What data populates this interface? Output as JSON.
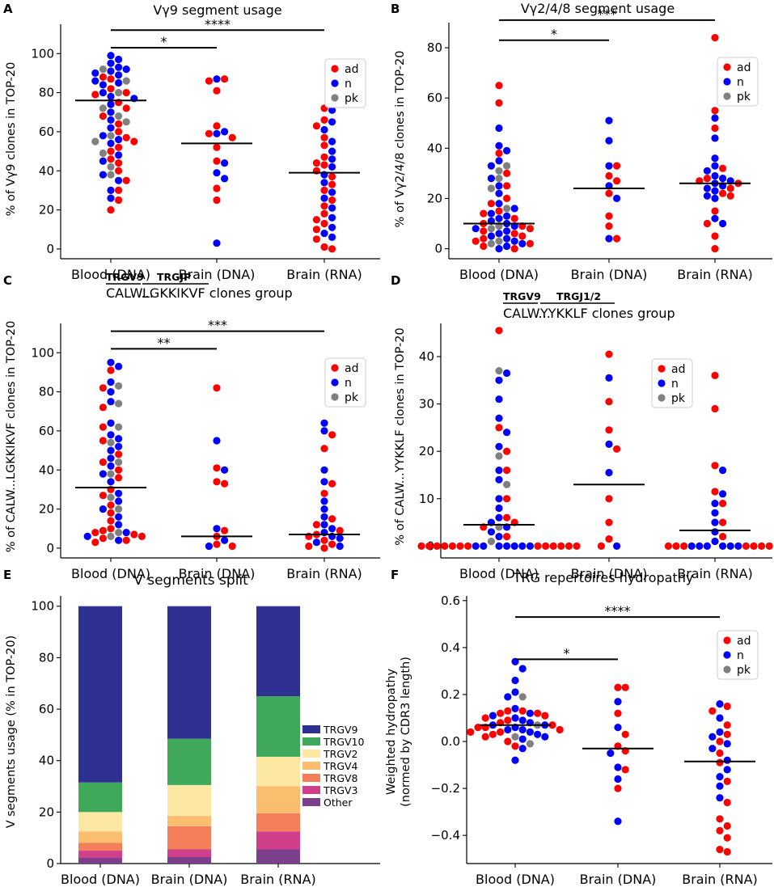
{
  "figure": {
    "colors": {
      "ad": "#ff0000",
      "n": "#0000ff",
      "pk": "#808080",
      "axis": "#000000"
    },
    "x_categories": [
      "Blood (DNA)",
      "Brain (DNA)",
      "Brain (RNA)"
    ]
  },
  "chart_data": [
    {
      "id": "A",
      "letter": "A",
      "type": "scatter",
      "title": "Vγ9 segment usage",
      "ylabel": "% of Vγ9 clones in TOP-20",
      "categories": [
        "Blood (DNA)",
        "Brain (DNA)",
        "Brain (RNA)"
      ],
      "ylim": [
        -5,
        115
      ],
      "yticks": [
        "0",
        "20",
        "40",
        "60",
        "80",
        "100"
      ],
      "tick_values": [
        0,
        20,
        40,
        60,
        80,
        100
      ],
      "legend": [
        "ad",
        "n",
        "pk"
      ],
      "legend_pos": "top-right",
      "medians": [
        76,
        54,
        39
      ],
      "significance": [
        {
          "from": 0,
          "to": 1,
          "y": 103,
          "label": "*"
        },
        {
          "from": 0,
          "to": 2,
          "y": 112,
          "label": "****"
        }
      ],
      "groups": [
        {
          "ad": [
            80,
            79,
            88,
            87,
            75,
            72,
            68,
            60,
            57,
            55,
            50,
            46,
            44,
            40,
            35,
            30,
            25,
            20,
            82,
            64,
            52
          ],
          "n": [
            99,
            97,
            95,
            93,
            92,
            90,
            89,
            86,
            85,
            84,
            80,
            78,
            77,
            74,
            70,
            66,
            62,
            58,
            56,
            54,
            48,
            45,
            38,
            35,
            30,
            26,
            91
          ],
          "pk": [
            92,
            86,
            80,
            72,
            68,
            65,
            58,
            55,
            49,
            42,
            38
          ]
        },
        {
          "ad": [
            87,
            86,
            81,
            63,
            59,
            57,
            52,
            45,
            31,
            25
          ],
          "n": [
            87,
            60,
            59,
            44,
            39,
            36,
            3
          ],
          "pk": []
        },
        {
          "ad": [
            72,
            66,
            63,
            57,
            53,
            47,
            44,
            43,
            40,
            37,
            33,
            30,
            25,
            22,
            18,
            15,
            13,
            10,
            5,
            1,
            0
          ],
          "n": [
            71,
            65,
            61,
            55,
            50,
            46,
            42,
            38,
            34,
            29,
            26,
            21,
            16,
            11,
            8,
            6
          ],
          "pk": []
        }
      ]
    },
    {
      "id": "B",
      "letter": "B",
      "type": "scatter",
      "title": "Vγ2/4/8 segment usage",
      "ylabel": "% of Vγ2/4/8 clones in TOP-20",
      "categories": [
        "Blood (DNA)",
        "Brain (DNA)",
        "Brain (RNA)"
      ],
      "ylim": [
        -4,
        90
      ],
      "yticks": [
        "0",
        "20",
        "40",
        "60",
        "80"
      ],
      "tick_values": [
        0,
        20,
        40,
        60,
        80
      ],
      "legend": [
        "ad",
        "n",
        "pk"
      ],
      "legend_pos": "top-right",
      "medians": [
        10,
        24,
        26
      ],
      "significance": [
        {
          "from": 0,
          "to": 1,
          "y": 83,
          "label": "*"
        },
        {
          "from": 0,
          "to": 2,
          "y": 91,
          "label": "***"
        }
      ],
      "groups": [
        {
          "ad": [
            65,
            58,
            38,
            30,
            25,
            20,
            18,
            15,
            12,
            10,
            9,
            8,
            7,
            6,
            5,
            4,
            3,
            2,
            1,
            0,
            14
          ],
          "n": [
            48,
            41,
            39,
            35,
            28,
            25,
            22,
            18,
            16,
            14,
            12,
            11,
            10,
            9,
            8,
            7,
            6,
            5,
            4,
            3,
            2,
            1,
            0,
            33,
            13
          ],
          "pk": [
            33,
            31,
            28,
            24,
            16,
            9,
            8,
            3,
            2
          ]
        },
        {
          "ad": [
            33,
            29,
            27,
            22,
            13,
            9,
            4
          ],
          "n": [
            51,
            43,
            33,
            25,
            20,
            4
          ],
          "pk": []
        },
        {
          "ad": [
            84,
            55,
            48,
            32,
            28,
            27,
            26,
            24,
            22,
            21,
            15,
            10,
            5,
            0
          ],
          "n": [
            52,
            44,
            36,
            33,
            31,
            29,
            28,
            27,
            26,
            25,
            24,
            23,
            21,
            20,
            12,
            10
          ],
          "pk": []
        }
      ]
    },
    {
      "id": "C",
      "letter": "C",
      "type": "scatter",
      "title_genes": [
        "TRGV9",
        "TRGJP"
      ],
      "title_seq": [
        "CALW...",
        "LGKKIKVF clones group"
      ],
      "ylabel": "% of CALW...LGKKIKVF clones in TOP-20",
      "categories": [
        "Blood (DNA)",
        "Brain (DNA)",
        "Brain (RNA)"
      ],
      "ylim": [
        -5,
        115
      ],
      "yticks": [
        "0",
        "20",
        "40",
        "60",
        "80",
        "100"
      ],
      "tick_values": [
        0,
        20,
        40,
        60,
        80,
        100
      ],
      "legend": [
        "ad",
        "n",
        "pk"
      ],
      "legend_pos": "top-right",
      "medians": [
        31,
        6,
        7
      ],
      "significance": [
        {
          "from": 0,
          "to": 1,
          "y": 102,
          "label": "**"
        },
        {
          "from": 0,
          "to": 2,
          "y": 111,
          "label": "***"
        }
      ],
      "groups": [
        {
          "ad": [
            91,
            82,
            72,
            62,
            55,
            48,
            44,
            40,
            36,
            30,
            27,
            22,
            18,
            14,
            9,
            8,
            7,
            6,
            5,
            4,
            3,
            10
          ],
          "n": [
            95,
            93,
            85,
            80,
            75,
            64,
            58,
            56,
            52,
            50,
            46,
            42,
            38,
            34,
            28,
            24,
            20,
            16,
            12,
            8,
            6,
            4
          ],
          "pk": [
            83,
            74,
            62,
            54,
            44,
            38,
            26,
            20,
            8,
            6
          ]
        },
        {
          "ad": [
            82,
            41,
            34,
            33,
            9,
            6,
            2,
            1
          ],
          "n": [
            55,
            40,
            10,
            4,
            1
          ],
          "pk": []
        },
        {
          "ad": [
            58,
            51,
            33,
            28,
            15,
            12,
            9,
            7,
            6,
            4,
            2,
            1,
            0
          ],
          "n": [
            64,
            60,
            40,
            34,
            24,
            20,
            16,
            12,
            10,
            8,
            6,
            5,
            3,
            1
          ],
          "pk": []
        }
      ]
    },
    {
      "id": "D",
      "letter": "D",
      "type": "scatter",
      "title_genes": [
        "TRGV9",
        "TRGJ1/2"
      ],
      "title_seq": [
        "CALW...",
        "YYKKLF clones group"
      ],
      "ylabel": "% of CALW...YYKKLF clones in TOP-20",
      "categories": [
        "Blood (DNA)",
        "Brain (DNA)",
        "Brain (RNA)"
      ],
      "ylim": [
        -2.5,
        47
      ],
      "yticks": [
        "0",
        "10",
        "20",
        "30",
        "40"
      ],
      "tick_values": [
        0,
        10,
        20,
        30,
        40
      ],
      "legend": [
        "ad",
        "n",
        "pk"
      ],
      "legend_pos": "top-center",
      "medians": [
        4.5,
        13,
        3.3
      ],
      "significance": [],
      "groups": [
        {
          "ad": [
            45.5,
            25,
            20,
            16,
            10,
            6,
            5,
            4,
            2,
            0,
            0,
            0,
            0,
            0,
            0,
            0,
            0,
            0,
            0,
            0,
            0,
            0
          ],
          "n": [
            36.5,
            35,
            31,
            27,
            24,
            21,
            16,
            14,
            10,
            8,
            6,
            5,
            4,
            3,
            2,
            0,
            0,
            0,
            0,
            0,
            0,
            0
          ],
          "pk": [
            37,
            19,
            13,
            4,
            1
          ]
        },
        {
          "ad": [
            40.5,
            30.5,
            24.5,
            20.5,
            10,
            5,
            1.5,
            0
          ],
          "n": [
            35.5,
            21.5,
            15.5,
            0
          ],
          "pk": []
        },
        {
          "ad": [
            36,
            29,
            17,
            11.5,
            9,
            5,
            2,
            0,
            0,
            0,
            0,
            0,
            0,
            0
          ],
          "n": [
            16,
            11,
            9,
            7,
            5,
            3,
            1,
            0,
            0,
            0,
            0,
            0,
            0
          ],
          "pk": []
        }
      ]
    },
    {
      "id": "E",
      "letter": "E",
      "type": "bar",
      "stacked": true,
      "title": "V segments split",
      "ylabel": "V segments usage (% in TOP-20)",
      "categories": [
        "Blood (DNA)",
        "Brain (DNA)",
        "Brain (RNA)"
      ],
      "ylim": [
        0,
        104
      ],
      "yticks": [
        "0",
        "20",
        "40",
        "60",
        "80",
        "100"
      ],
      "tick_values": [
        0,
        20,
        40,
        60,
        80,
        100
      ],
      "legend_pos": "center-right",
      "series": [
        {
          "name": "Other",
          "color": "#7b3f8c",
          "values": [
            2.2,
            2.5,
            5.5
          ]
        },
        {
          "name": "TRGV3",
          "color": "#cf3f8c",
          "values": [
            2.8,
            3,
            7
          ]
        },
        {
          "name": "TRGV8",
          "color": "#f47e5a",
          "values": [
            3,
            9,
            7
          ]
        },
        {
          "name": "TRGV4",
          "color": "#fbbd6e",
          "values": [
            4.5,
            4,
            10.5
          ]
        },
        {
          "name": "TRGV2",
          "color": "#fde8a3",
          "values": [
            7.5,
            12,
            11.5
          ]
        },
        {
          "name": "TRGV10",
          "color": "#40a85b",
          "values": [
            11.5,
            18,
            23.5
          ]
        },
        {
          "name": "TRGV9",
          "color": "#2e3192",
          "values": [
            68.5,
            51.5,
            35
          ]
        }
      ]
    },
    {
      "id": "F",
      "letter": "F",
      "type": "scatter",
      "title": "TRG repertoires hydropathy",
      "ylabel_lines": [
        "Weighted hydropathy",
        "(normed by CDR3 length)"
      ],
      "categories": [
        "Blood (DNA)",
        "Brain (DNA)",
        "Brain (RNA)"
      ],
      "ylim": [
        -0.52,
        0.62
      ],
      "yticks": [
        "0.6",
        "0.4",
        "0.2",
        "0.0",
        "−0.2",
        "−0.4"
      ],
      "tick_values": [
        0.6,
        0.4,
        0.2,
        0.0,
        -0.2,
        -0.4
      ],
      "legend": [
        "ad",
        "n",
        "pk"
      ],
      "legend_pos": "top-right",
      "medians": [
        0.07,
        -0.03,
        -0.085
      ],
      "significance": [
        {
          "from": 0,
          "to": 1,
          "y": 0.35,
          "label": "*"
        },
        {
          "from": 0,
          "to": 2,
          "y": 0.53,
          "label": "****"
        }
      ],
      "groups": [
        {
          "ad": [
            0.13,
            0.13,
            0.12,
            0.11,
            0.1,
            0.09,
            0.08,
            0.07,
            0.06,
            0.05,
            0.04,
            0.03,
            0.02,
            0.0,
            -0.02,
            0.12,
            0.06,
            0.04
          ],
          "n": [
            0.34,
            0.31,
            0.26,
            0.21,
            0.19,
            0.14,
            0.12,
            0.11,
            0.1,
            0.09,
            0.08,
            0.07,
            0.07,
            0.06,
            0.05,
            0.05,
            0.04,
            0.03,
            0.02,
            0.01,
            -0.03,
            -0.08
          ],
          "pk": [
            0.19,
            0.07,
            0.02,
            -0.01
          ]
        },
        {
          "ad": [
            0.23,
            0.23,
            0.12,
            0.03,
            -0.02,
            -0.04,
            -0.12,
            -0.2
          ],
          "n": [
            0.17,
            0.06,
            -0.05,
            -0.11,
            -0.16,
            -0.34
          ],
          "pk": []
        },
        {
          "ad": [
            0.15,
            0.13,
            0.07,
            0.03,
            0.0,
            -0.05,
            -0.09,
            -0.17,
            -0.26,
            -0.33,
            -0.36,
            -0.38,
            -0.41,
            -0.46,
            -0.47
          ],
          "n": [
            0.16,
            0.1,
            0.04,
            0.02,
            -0.01,
            -0.03,
            -0.08,
            -0.12,
            -0.15,
            -0.19,
            -0.24
          ],
          "pk": []
        }
      ]
    }
  ]
}
